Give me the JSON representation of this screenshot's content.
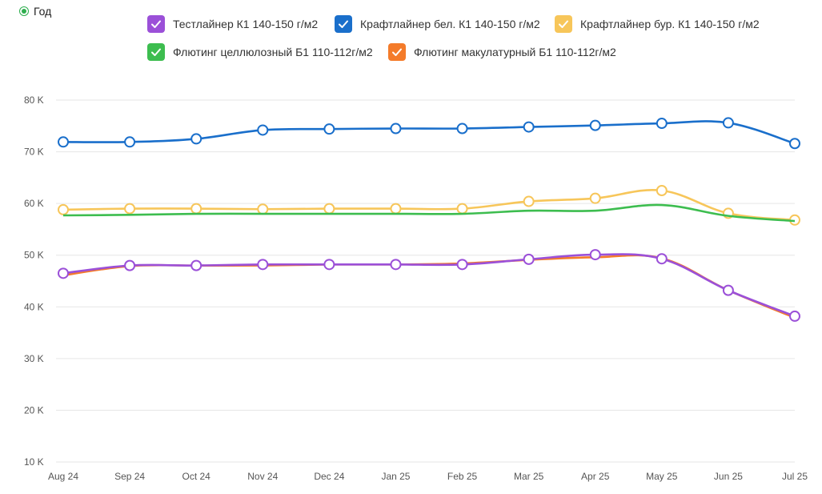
{
  "period": {
    "label": "Год"
  },
  "legend": [
    {
      "label": "Тестлайнер К1 140-150 г/м2",
      "color": "#9b50d8"
    },
    {
      "label": "Крафтлайнер бел. К1 140-150 г/м2",
      "color": "#1a6fcb"
    },
    {
      "label": "Крафтлайнер бур. К1 140-150 г/м2",
      "color": "#f7c65a"
    },
    {
      "label": "Флютинг целлюлозный Б1 110-112г/м2",
      "color": "#3dbd4f"
    },
    {
      "label": "Флютинг макулатурный Б1 110-112г/м2",
      "color": "#f47b2a"
    }
  ],
  "chart_data": {
    "type": "line",
    "x": [
      "Aug 24",
      "Sep 24",
      "Oct 24",
      "Nov 24",
      "Dec 24",
      "Jan 25",
      "Feb 25",
      "Mar 25",
      "Apr 25",
      "May 25",
      "Jun 25",
      "Jul 25"
    ],
    "yticks": [
      "10 K",
      "20 K",
      "30 K",
      "40 K",
      "50 K",
      "60 K",
      "70 K",
      "80 K"
    ],
    "ylim": [
      10000,
      80000
    ],
    "grid": true,
    "legend_position": "top",
    "series": [
      {
        "name": "Крафтлайнер бел. К1 140-150 г/м2",
        "color": "#1a6fcb",
        "markers": true,
        "values": [
          71900,
          71900,
          72500,
          74200,
          74400,
          74500,
          74500,
          74800,
          75100,
          75500,
          75600,
          71600
        ]
      },
      {
        "name": "Крафтлайнер бур. К1 140-150 г/м2",
        "color": "#f7c65a",
        "markers": true,
        "values": [
          58800,
          59000,
          59000,
          58900,
          59000,
          59000,
          59000,
          60400,
          61000,
          62500,
          58100,
          56800
        ]
      },
      {
        "name": "Флютинг целлюлозный Б1 110-112г/м2",
        "color": "#3dbd4f",
        "markers": false,
        "values": [
          57700,
          57800,
          58000,
          58000,
          58000,
          58000,
          58000,
          58600,
          58600,
          59700,
          57600,
          56600
        ]
      },
      {
        "name": "Флютинг макулатурный Б1 110-112г/м2",
        "color": "#f47b2a",
        "markers": false,
        "values": [
          46100,
          47900,
          48000,
          48000,
          48200,
          48200,
          48400,
          49100,
          49600,
          49400,
          43200,
          37900
        ]
      },
      {
        "name": "Тестлайнер К1 140-150 г/м2",
        "color": "#9b50d8",
        "markers": true,
        "values": [
          46500,
          48000,
          48000,
          48200,
          48200,
          48200,
          48200,
          49200,
          50100,
          49300,
          43200,
          38200
        ]
      }
    ]
  }
}
